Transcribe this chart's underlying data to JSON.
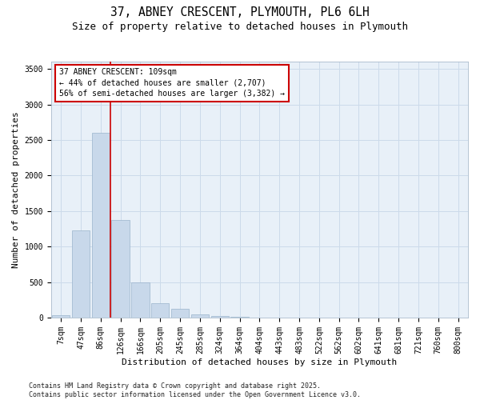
{
  "title": "37, ABNEY CRESCENT, PLYMOUTH, PL6 6LH",
  "subtitle": "Size of property relative to detached houses in Plymouth",
  "xlabel": "Distribution of detached houses by size in Plymouth",
  "ylabel": "Number of detached properties",
  "categories": [
    "7sqm",
    "47sqm",
    "86sqm",
    "126sqm",
    "166sqm",
    "205sqm",
    "245sqm",
    "285sqm",
    "324sqm",
    "364sqm",
    "404sqm",
    "443sqm",
    "483sqm",
    "522sqm",
    "562sqm",
    "602sqm",
    "641sqm",
    "681sqm",
    "721sqm",
    "760sqm",
    "800sqm"
  ],
  "values": [
    30,
    1230,
    2600,
    1370,
    490,
    200,
    120,
    50,
    25,
    10,
    5,
    3,
    0,
    0,
    0,
    0,
    0,
    0,
    0,
    0,
    0
  ],
  "bar_color": "#c8d8ea",
  "bar_edge_color": "#9ab4cc",
  "grid_color": "#ccdaea",
  "background_color": "#e8f0f8",
  "vline_color": "#cc0000",
  "vline_pos": 2.5,
  "annotation_text": "37 ABNEY CRESCENT: 109sqm\n← 44% of detached houses are smaller (2,707)\n56% of semi-detached houses are larger (3,382) →",
  "ylim": [
    0,
    3600
  ],
  "yticks": [
    0,
    500,
    1000,
    1500,
    2000,
    2500,
    3000,
    3500
  ],
  "footnote": "Contains HM Land Registry data © Crown copyright and database right 2025.\nContains public sector information licensed under the Open Government Licence v3.0.",
  "title_fontsize": 10.5,
  "subtitle_fontsize": 9,
  "axis_label_fontsize": 8,
  "tick_fontsize": 7,
  "annotation_fontsize": 7,
  "footnote_fontsize": 6
}
